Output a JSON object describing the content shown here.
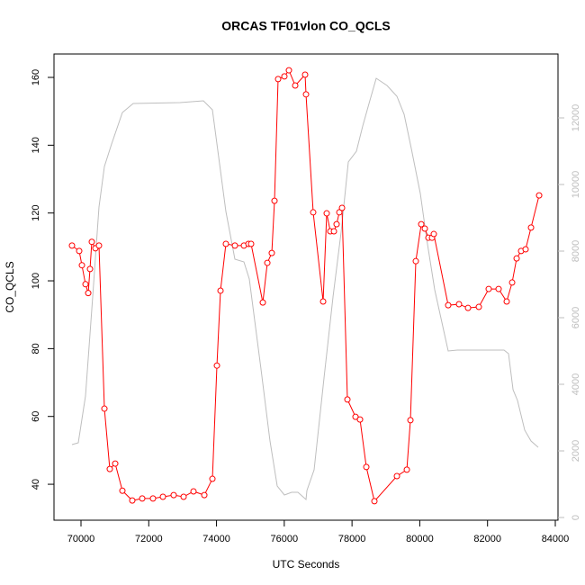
{
  "chart_data": {
    "type": "line",
    "title": "ORCAS TF01vlon CO_QCLS",
    "xlabel": "UTC Seconds",
    "ylabel": "CO_QCLS",
    "xlim": [
      69203,
      84080
    ],
    "xticks": [
      70000,
      72000,
      74000,
      76000,
      78000,
      80000,
      82000,
      84000
    ],
    "ylim": [
      29.4,
      166.9
    ],
    "yticks": [
      40,
      60,
      80,
      100,
      120,
      140,
      160
    ],
    "y2lim": [
      -81,
      13919
    ],
    "y2ticks": [
      0,
      2000,
      4000,
      6000,
      8000,
      10000,
      12000
    ],
    "series": [
      {
        "color": "#ff0000",
        "markers": true,
        "x": [
          69734,
          69947,
          70027,
          70133,
          70213,
          70266,
          70319,
          70425,
          70531,
          70691,
          70850,
          71010,
          71222,
          71514,
          71807,
          72125,
          72418,
          72736,
          73029,
          73321,
          73640,
          73879,
          74012,
          74118,
          74277,
          74543,
          74809,
          74942,
          75021,
          75367,
          75500,
          75632,
          75712,
          75818,
          76004,
          76137,
          76323,
          76615,
          76642,
          76854,
          77147,
          77253,
          77359,
          77466,
          77545,
          77625,
          77705,
          77864,
          78103,
          78236,
          78422,
          78661,
          79325,
          79618,
          79724,
          79883,
          80043,
          80149,
          80255,
          80361,
          80414,
          80839,
          81158,
          81424,
          81743,
          82035,
          82327,
          82566,
          82726,
          82859,
          82991,
          83124,
          83284,
          83523
        ],
        "values": [
          110.4,
          108.8,
          104.6,
          99.0,
          96.4,
          103.5,
          111.5,
          109.6,
          110.4,
          62.3,
          44.5,
          46.1,
          38.1,
          35.2,
          35.8,
          35.8,
          36.3,
          36.8,
          36.3,
          37.9,
          36.8,
          41.6,
          75.0,
          97.1,
          110.9,
          110.4,
          110.4,
          110.9,
          110.9,
          93.6,
          105.3,
          108.2,
          123.6,
          159.5,
          160.3,
          162.1,
          157.6,
          160.8,
          155.0,
          120.2,
          93.9,
          119.9,
          114.6,
          114.6,
          116.7,
          120.2,
          121.5,
          65.0,
          59.9,
          59.1,
          45.1,
          35.0,
          42.4,
          44.3,
          58.9,
          105.8,
          116.7,
          115.4,
          112.7,
          112.7,
          113.8,
          92.8,
          93.1,
          92.0,
          92.3,
          97.6,
          97.6,
          93.9,
          99.5,
          106.6,
          108.8,
          109.3,
          115.7,
          125.2
        ]
      },
      {
        "color": "#bebebe",
        "axis": "y2",
        "markers": false,
        "x": [
          69734,
          69920,
          70133,
          70345,
          70531,
          70691,
          70903,
          71222,
          71541,
          72922,
          73613,
          73879,
          74277,
          74543,
          74809,
          74968,
          75313,
          75579,
          75792,
          76004,
          76217,
          76403,
          76642,
          76669,
          76881,
          77173,
          77439,
          77678,
          77891,
          78130,
          78316,
          78502,
          78714,
          79033,
          79325,
          79538,
          79750,
          80016,
          80202,
          80441,
          80839,
          81105,
          82487,
          82620,
          82753,
          82885,
          83098,
          83284,
          83496
        ],
        "values": [
          2189,
          2243,
          3649,
          6622,
          9324,
          10541,
          11216,
          12162,
          12432,
          12459,
          12514,
          12243,
          9189,
          7757,
          7676,
          7162,
          4459,
          2297,
          946,
          676,
          757,
          757,
          541,
          811,
          1432,
          4189,
          6622,
          8568,
          10676,
          11000,
          11757,
          12432,
          13189,
          12973,
          12649,
          12108,
          11081,
          9730,
          8378,
          6838,
          5000,
          5027,
          5027,
          4919,
          3838,
          3514,
          2622,
          2297,
          2108
        ]
      }
    ]
  }
}
